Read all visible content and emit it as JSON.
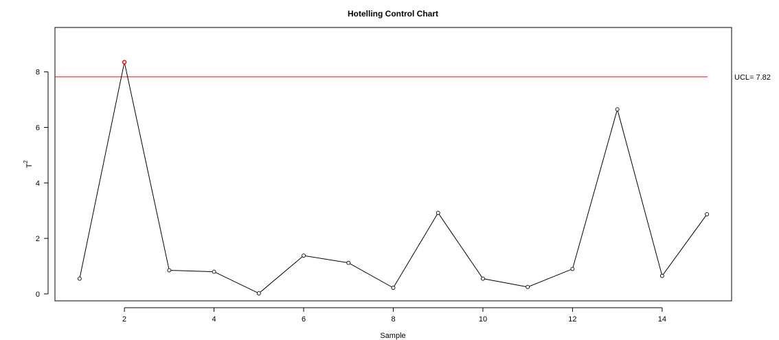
{
  "chart_data": {
    "type": "line",
    "title": "Hotelling Control Chart",
    "xlabel": "Sample",
    "ylabel": "T",
    "ylabel_superscript": "2",
    "xlim": [
      0.45,
      15.55
    ],
    "ylim": [
      -0.25,
      9.6
    ],
    "xticks": [
      2,
      4,
      6,
      8,
      10,
      12,
      14
    ],
    "yticks": [
      0,
      2,
      4,
      6,
      8
    ],
    "grid": false,
    "x": [
      1,
      2,
      3,
      4,
      5,
      6,
      7,
      8,
      9,
      10,
      11,
      12,
      13,
      14,
      15
    ],
    "series": [
      {
        "values": [
          0.55,
          8.35,
          0.85,
          0.8,
          0.02,
          1.38,
          1.12,
          0.22,
          2.92,
          0.55,
          0.25,
          0.9,
          6.65,
          0.65,
          2.87
        ]
      }
    ],
    "out_of_control_points": [
      2
    ],
    "ucl": {
      "value": 7.82,
      "label": "UCL= 7.82",
      "color": "#ff0000"
    },
    "colors": {
      "line": "#000000",
      "ucl": "#ff0000",
      "out_of_control": "#ff0000"
    }
  }
}
